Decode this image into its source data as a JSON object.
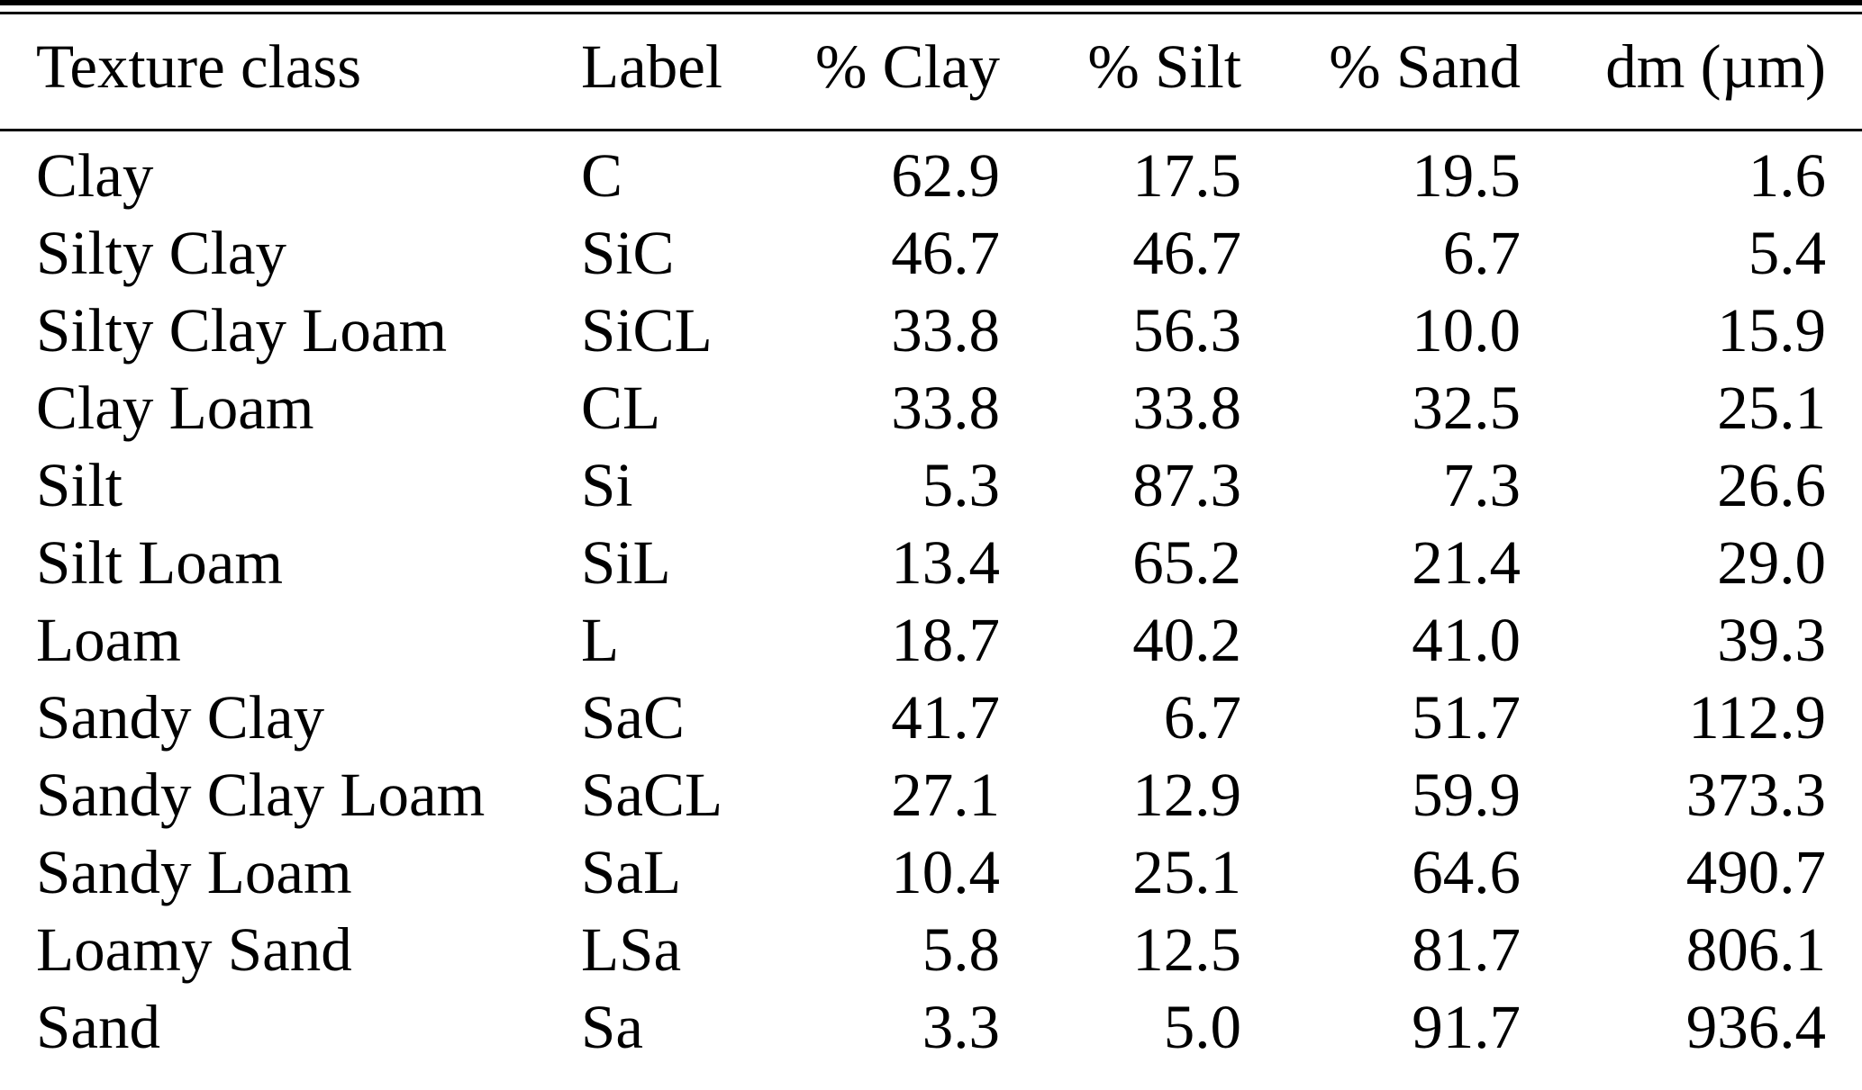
{
  "table": {
    "columns": [
      {
        "key": "texture-class",
        "label": "Texture class",
        "align": "left"
      },
      {
        "key": "label",
        "label": "Label",
        "align": "left"
      },
      {
        "key": "clay-percent",
        "label": "% Clay",
        "align": "right"
      },
      {
        "key": "silt-percent",
        "label": "% Silt",
        "align": "right"
      },
      {
        "key": "sand-percent",
        "label": "% Sand",
        "align": "right"
      },
      {
        "key": "dm-micron",
        "label": "dm (µm)",
        "align": "right"
      }
    ],
    "rows": [
      [
        "Clay",
        "C",
        "62.9",
        "17.5",
        "19.5",
        "1.6"
      ],
      [
        "Silty Clay",
        "SiC",
        "46.7",
        "46.7",
        "6.7",
        "5.4"
      ],
      [
        "Silty Clay Loam",
        "SiCL",
        "33.8",
        "56.3",
        "10.0",
        "15.9"
      ],
      [
        "Clay Loam",
        "CL",
        "33.8",
        "33.8",
        "32.5",
        "25.1"
      ],
      [
        "Silt",
        "Si",
        "5.3",
        "87.3",
        "7.3",
        "26.6"
      ],
      [
        "Silt Loam",
        "SiL",
        "13.4",
        "65.2",
        "21.4",
        "29.0"
      ],
      [
        "Loam",
        "L",
        "18.7",
        "40.2",
        "41.0",
        "39.3"
      ],
      [
        "Sandy Clay",
        "SaC",
        "41.7",
        "6.7",
        "51.7",
        "112.9"
      ],
      [
        "Sandy Clay Loam",
        "SaCL",
        "27.1",
        "12.9",
        "59.9",
        "373.3"
      ],
      [
        "Sandy Loam",
        "SaL",
        "10.4",
        "25.1",
        "64.6",
        "490.7"
      ],
      [
        "Loamy Sand",
        "LSa",
        "5.8",
        "12.5",
        "81.7",
        "806.1"
      ],
      [
        "Sand",
        "Sa",
        "3.3",
        "5.0",
        "91.7",
        "936.4"
      ]
    ]
  },
  "colors": {
    "text": "#000000",
    "background": "#ffffff",
    "rule": "#000000"
  }
}
